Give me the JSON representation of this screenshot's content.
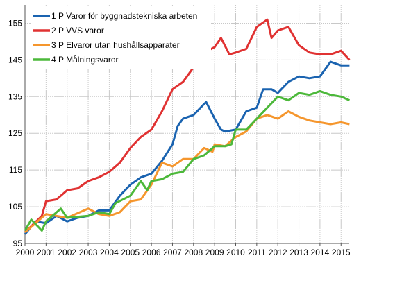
{
  "chart_data": {
    "type": "line",
    "title": "",
    "xlabel": "",
    "ylabel": "",
    "xlim": [
      2000,
      2015.45
    ],
    "ylim": [
      95,
      160
    ],
    "yticks": [
      95,
      105,
      115,
      125,
      135,
      145,
      155
    ],
    "xticks": [
      "2000",
      "2001",
      "2002",
      "2003",
      "2004",
      "2005",
      "2006",
      "2007",
      "2008",
      "2009",
      "2010",
      "2011",
      "2012",
      "2013",
      "2014",
      "2015"
    ],
    "grid": true,
    "legend_position": "top-left",
    "series": [
      {
        "name": "1 P Varor för byggnadstekniska arbeten",
        "color": "#1a63b0",
        "x": [
          2000,
          2000.5,
          2001,
          2001.5,
          2002,
          2002.5,
          2003,
          2003.5,
          2004,
          2004.5,
          2005,
          2005.5,
          2006,
          2006.5,
          2007,
          2007.25,
          2007.5,
          2008,
          2008.5,
          2008.6,
          2009,
          2009.3,
          2009.5,
          2010,
          2010.5,
          2011,
          2011.3,
          2011.7,
          2012,
          2012.5,
          2013,
          2013.5,
          2014,
          2014.5,
          2015,
          2015.4
        ],
        "y": [
          97.5,
          101,
          100.5,
          102.5,
          101,
          102,
          102.5,
          104,
          104,
          108,
          111,
          113,
          114,
          117.5,
          122,
          127,
          129,
          130,
          133,
          133.5,
          129,
          126,
          125.5,
          126,
          131,
          132,
          137,
          137,
          136,
          139,
          140.5,
          140,
          140.5,
          144.5,
          143.5,
          143.5
        ]
      },
      {
        "name": "2 P VVS varor",
        "color": "#e03232",
        "x": [
          2000,
          2000.8,
          2001,
          2001.5,
          2002,
          2002.5,
          2003,
          2003.5,
          2004,
          2004.5,
          2005,
          2005.5,
          2006,
          2006.5,
          2007,
          2007.5,
          2008,
          2008.5,
          2009,
          2009.3,
          2009.7,
          2010,
          2010.5,
          2011,
          2011.5,
          2011.7,
          2012,
          2012.5,
          2013,
          2013.5,
          2014,
          2014.5,
          2015,
          2015.4
        ],
        "y": [
          98,
          102.5,
          106.5,
          107,
          109.5,
          110,
          112,
          113,
          114.5,
          117,
          121,
          124,
          126,
          131,
          137,
          139,
          143,
          147,
          148.5,
          151,
          146.5,
          147,
          148,
          154,
          156,
          151,
          153,
          154,
          149,
          147,
          146.5,
          146.5,
          147.5,
          145
        ]
      },
      {
        "name": "3 P Elvaror utan hushållsapparater",
        "color": "#f5962d",
        "x": [
          2000,
          2001,
          2002,
          2003,
          2003.5,
          2004,
          2004.5,
          2005,
          2005.5,
          2006,
          2006.5,
          2007,
          2007.5,
          2008,
          2008.5,
          2008.9,
          2009,
          2009.5,
          2010,
          2010.5,
          2011,
          2011.5,
          2012,
          2012.5,
          2013,
          2013.5,
          2014,
          2014.5,
          2015,
          2015.4
        ],
        "y": [
          98,
          103,
          102,
          104.5,
          103,
          102.5,
          103.5,
          106.5,
          107,
          111,
          117,
          116,
          118,
          118,
          121,
          120,
          122,
          121.5,
          124,
          125.5,
          129,
          130,
          129,
          131,
          129.5,
          128.5,
          128,
          127.5,
          128,
          127.5
        ]
      },
      {
        "name": "4 P Målningsvaror",
        "color": "#4cb83a",
        "x": [
          2000,
          2000.3,
          2000.8,
          2001,
          2001.7,
          2002,
          2003,
          2003.5,
          2004,
          2004.3,
          2005,
          2005.5,
          2005.8,
          2006,
          2006.5,
          2007,
          2007.5,
          2008,
          2008.5,
          2009,
          2009.5,
          2009.8,
          2010,
          2010.5,
          2011,
          2011.5,
          2012,
          2012.5,
          2013,
          2013.5,
          2014,
          2014.5,
          2015,
          2015.4
        ],
        "y": [
          98.5,
          101.5,
          98.5,
          101,
          104.5,
          102,
          102.5,
          103.5,
          103,
          106,
          108,
          112,
          109.5,
          112,
          112.5,
          114,
          114.5,
          118,
          119,
          121.5,
          121.5,
          122,
          126,
          126,
          129,
          132,
          135,
          134,
          136,
          135.5,
          136.5,
          135.5,
          135,
          134
        ]
      }
    ]
  }
}
